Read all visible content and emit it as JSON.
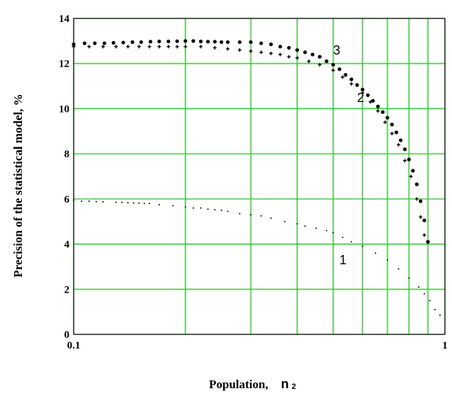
{
  "chart_data": {
    "type": "scatter",
    "title": "",
    "ylabel": "Precision of the statistical model, %",
    "xlabel_main": "Population,",
    "xlabel_var": "n",
    "xlabel_subscript": "2",
    "x_scale": "log",
    "xlim": [
      0.1,
      1
    ],
    "ylim": [
      0,
      14
    ],
    "grid": true,
    "grid_color": "#00e000",
    "x_ticks": [
      {
        "value": 0.1,
        "label": "0.1"
      },
      {
        "value": 1,
        "label": "1"
      }
    ],
    "y_ticks": [
      {
        "value": 0,
        "label": "0"
      },
      {
        "value": 2,
        "label": "2"
      },
      {
        "value": 4,
        "label": "4"
      },
      {
        "value": 6,
        "label": "6"
      },
      {
        "value": 8,
        "label": "8"
      },
      {
        "value": 10,
        "label": "10"
      },
      {
        "value": 12,
        "label": "12"
      },
      {
        "value": 14,
        "label": "14"
      }
    ],
    "series": [
      {
        "label": "1",
        "label_at": [
          0.52,
          3.1
        ],
        "marker": "dot-small",
        "points": [
          [
            0.1,
            5.95
          ],
          [
            0.105,
            5.9
          ],
          [
            0.11,
            5.9
          ],
          [
            0.115,
            5.88
          ],
          [
            0.12,
            5.87
          ],
          [
            0.13,
            5.85
          ],
          [
            0.135,
            5.85
          ],
          [
            0.14,
            5.83
          ],
          [
            0.145,
            5.82
          ],
          [
            0.15,
            5.82
          ],
          [
            0.155,
            5.8
          ],
          [
            0.16,
            5.8
          ],
          [
            0.17,
            5.75
          ],
          [
            0.185,
            5.7
          ],
          [
            0.2,
            5.65
          ],
          [
            0.21,
            5.6
          ],
          [
            0.22,
            5.6
          ],
          [
            0.23,
            5.55
          ],
          [
            0.24,
            5.52
          ],
          [
            0.25,
            5.5
          ],
          [
            0.26,
            5.45
          ],
          [
            0.28,
            5.35
          ],
          [
            0.3,
            5.3
          ],
          [
            0.32,
            5.25
          ],
          [
            0.34,
            5.15
          ],
          [
            0.37,
            5.0
          ],
          [
            0.4,
            4.9
          ],
          [
            0.42,
            4.8
          ],
          [
            0.45,
            4.7
          ],
          [
            0.48,
            4.6
          ],
          [
            0.5,
            4.5
          ],
          [
            0.53,
            4.3
          ],
          [
            0.56,
            4.1
          ],
          [
            0.6,
            3.9
          ],
          [
            0.65,
            3.6
          ],
          [
            0.7,
            3.3
          ],
          [
            0.75,
            2.9
          ],
          [
            0.8,
            2.5
          ],
          [
            0.85,
            2.1
          ],
          [
            0.88,
            1.8
          ],
          [
            0.91,
            1.5
          ],
          [
            0.94,
            1.1
          ],
          [
            0.97,
            0.85
          ]
        ]
      },
      {
        "label": "2",
        "label_at": [
          0.58,
          10.3
        ],
        "marker": "plus",
        "points": [
          [
            0.1,
            12.75
          ],
          [
            0.11,
            12.75
          ],
          [
            0.12,
            12.75
          ],
          [
            0.13,
            12.75
          ],
          [
            0.14,
            12.75
          ],
          [
            0.15,
            12.75
          ],
          [
            0.16,
            12.75
          ],
          [
            0.17,
            12.75
          ],
          [
            0.18,
            12.75
          ],
          [
            0.19,
            12.75
          ],
          [
            0.2,
            12.75
          ],
          [
            0.22,
            12.75
          ],
          [
            0.24,
            12.7
          ],
          [
            0.26,
            12.65
          ],
          [
            0.28,
            12.6
          ],
          [
            0.3,
            12.55
          ],
          [
            0.32,
            12.5
          ],
          [
            0.34,
            12.45
          ],
          [
            0.36,
            12.4
          ],
          [
            0.38,
            12.3
          ],
          [
            0.4,
            12.25
          ],
          [
            0.43,
            12.1
          ],
          [
            0.46,
            11.95
          ],
          [
            0.5,
            11.7
          ],
          [
            0.53,
            11.4
          ],
          [
            0.56,
            11.1
          ],
          [
            0.6,
            10.7
          ],
          [
            0.63,
            10.3
          ],
          [
            0.66,
            9.9
          ],
          [
            0.69,
            9.4
          ],
          [
            0.72,
            8.9
          ],
          [
            0.75,
            8.4
          ],
          [
            0.78,
            7.7
          ],
          [
            0.81,
            7.0
          ],
          [
            0.84,
            6.0
          ],
          [
            0.86,
            5.2
          ],
          [
            0.88,
            4.4
          ]
        ]
      },
      {
        "label": "3",
        "label_at": [
          0.5,
          12.4
        ],
        "marker": "dot-large",
        "points": [
          [
            0.1,
            12.85
          ],
          [
            0.107,
            12.9
          ],
          [
            0.114,
            12.9
          ],
          [
            0.121,
            12.9
          ],
          [
            0.128,
            12.92
          ],
          [
            0.136,
            12.93
          ],
          [
            0.144,
            12.95
          ],
          [
            0.152,
            12.95
          ],
          [
            0.161,
            12.97
          ],
          [
            0.17,
            12.98
          ],
          [
            0.18,
            12.98
          ],
          [
            0.19,
            12.99
          ],
          [
            0.2,
            13.0
          ],
          [
            0.21,
            13.0
          ],
          [
            0.22,
            12.98
          ],
          [
            0.23,
            12.97
          ],
          [
            0.24,
            12.97
          ],
          [
            0.25,
            12.95
          ],
          [
            0.26,
            12.95
          ],
          [
            0.28,
            12.95
          ],
          [
            0.3,
            12.95
          ],
          [
            0.32,
            12.9
          ],
          [
            0.34,
            12.85
          ],
          [
            0.36,
            12.75
          ],
          [
            0.38,
            12.7
          ],
          [
            0.4,
            12.6
          ],
          [
            0.42,
            12.5
          ],
          [
            0.44,
            12.4
          ],
          [
            0.46,
            12.3
          ],
          [
            0.48,
            12.1
          ],
          [
            0.5,
            11.95
          ],
          [
            0.52,
            11.75
          ],
          [
            0.54,
            11.5
          ],
          [
            0.56,
            11.3
          ],
          [
            0.58,
            11.05
          ],
          [
            0.6,
            10.85
          ],
          [
            0.62,
            10.6
          ],
          [
            0.64,
            10.35
          ],
          [
            0.66,
            10.1
          ],
          [
            0.68,
            9.85
          ],
          [
            0.7,
            9.6
          ],
          [
            0.72,
            9.3
          ],
          [
            0.74,
            8.95
          ],
          [
            0.76,
            8.6
          ],
          [
            0.78,
            8.2
          ],
          [
            0.8,
            7.75
          ],
          [
            0.82,
            7.25
          ],
          [
            0.84,
            6.65
          ],
          [
            0.86,
            5.9
          ],
          [
            0.88,
            5.05
          ],
          [
            0.9,
            4.1
          ]
        ]
      }
    ]
  }
}
